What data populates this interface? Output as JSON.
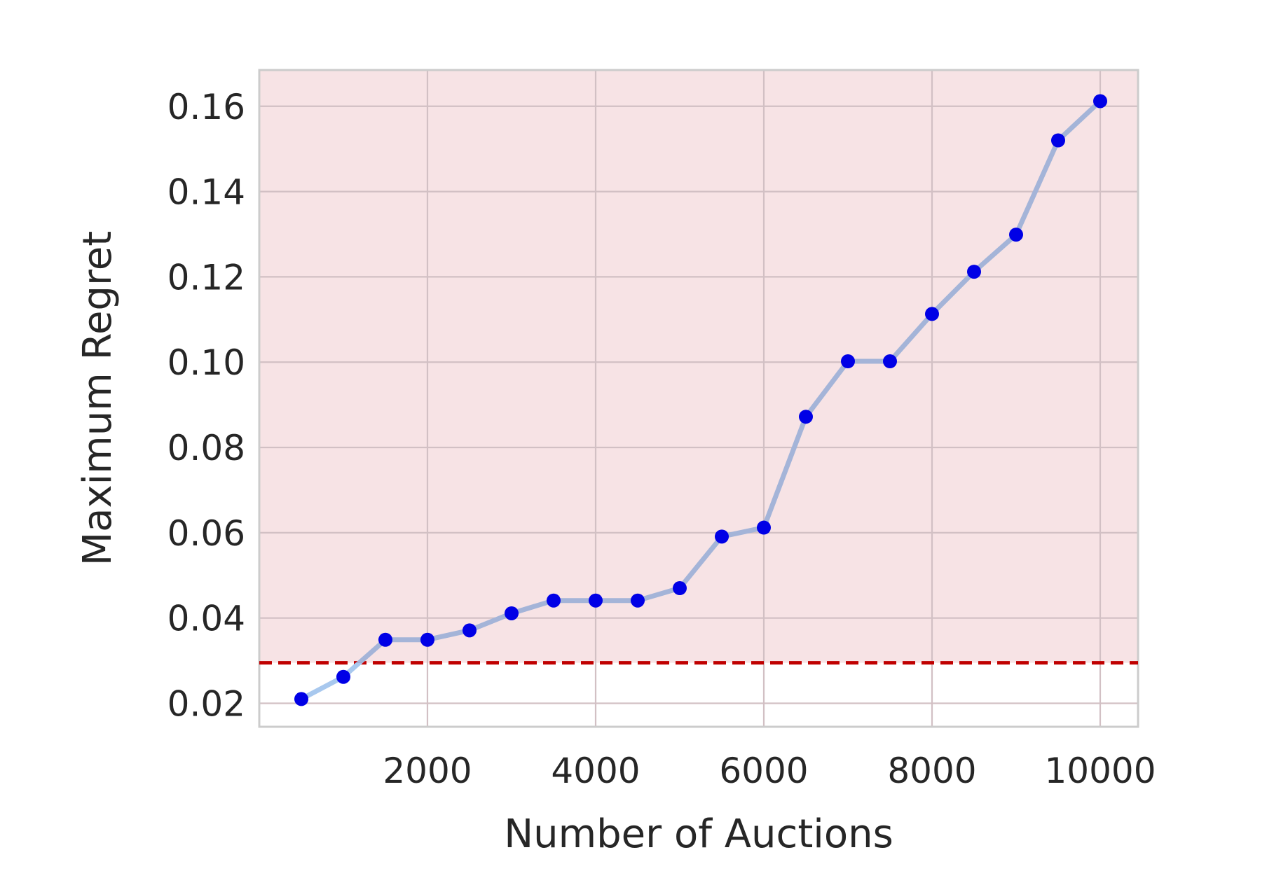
{
  "chart_data": {
    "type": "line",
    "title": "",
    "xlabel": "Number of Auctions",
    "ylabel": "Maximum Regret",
    "xlim": [
      0,
      10450
    ],
    "ylim": [
      0.0145,
      0.1685
    ],
    "xticks": [
      2000,
      4000,
      6000,
      8000,
      10000
    ],
    "xtick_labels": [
      "2000",
      "4000",
      "6000",
      "8000",
      "10000"
    ],
    "yticks": [
      0.02,
      0.04,
      0.06,
      0.08,
      0.1,
      0.12,
      0.14,
      0.16
    ],
    "ytick_labels": [
      "0.02",
      "0.04",
      "0.06",
      "0.08",
      "0.10",
      "0.12",
      "0.14",
      "0.16"
    ],
    "grid": true,
    "threshold": {
      "y": 0.0295,
      "style": "dashed",
      "color": "#c00000",
      "shaded_above_color": "#f7e3e5"
    },
    "series": [
      {
        "x": [
          500,
          1000,
          1500,
          2000,
          2500,
          3000,
          3500,
          4000,
          4500,
          5000,
          5500,
          6000,
          6500,
          7000,
          7500,
          8000,
          8500,
          9000,
          9500,
          10000
        ],
        "values": [
          0.021,
          0.0262,
          0.0349,
          0.0349,
          0.0371,
          0.0411,
          0.0441,
          0.0441,
          0.0441,
          0.047,
          0.0591,
          0.0612,
          0.0872,
          0.1002,
          0.1002,
          0.1113,
          0.1212,
          0.1299,
          0.152,
          0.1612
        ],
        "line_color_below": "#a8c8ee",
        "line_color_above": "#a4b4d8",
        "marker_color": "#0000e6"
      }
    ]
  }
}
